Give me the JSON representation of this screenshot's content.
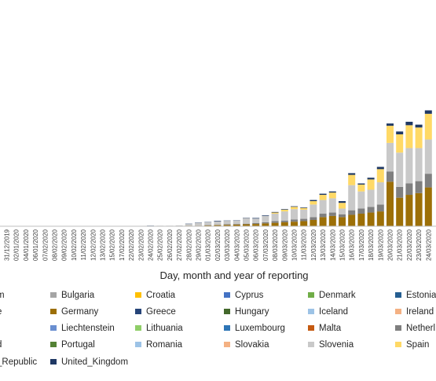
{
  "chart_data": {
    "type": "bar",
    "stacked": true,
    "xlabel": "Day, month and year of reporting",
    "ylabel": "",
    "title": "",
    "grid": false,
    "legend_position": "bottom",
    "categories": [
      "31/12/2019",
      "02/01/2020",
      "04/01/2020",
      "06/01/2020",
      "07/02/2020",
      "08/02/2020",
      "09/02/2020",
      "10/02/2020",
      "11/02/2020",
      "12/02/2020",
      "13/02/2020",
      "15/02/2020",
      "17/02/2020",
      "22/02/2020",
      "23/02/2020",
      "24/02/2020",
      "25/02/2020",
      "26/02/2020",
      "27/02/2020",
      "28/02/2020",
      "29/02/2020",
      "01/03/2020",
      "02/03/2020",
      "03/03/2020",
      "04/03/2020",
      "05/03/2020",
      "06/03/2020",
      "07/03/2020",
      "08/03/2020",
      "09/03/2020",
      "10/03/2020",
      "11/03/2020",
      "12/03/2020",
      "13/03/2020",
      "14/03/2020",
      "15/03/2020",
      "16/03/2020",
      "17/03/2020",
      "18/03/2020",
      "19/03/2020",
      "20/03/2020",
      "21/03/2020",
      "22/03/2020",
      "23/03/2020",
      "24/03/2020"
    ],
    "ylim": [
      0,
      30
    ],
    "series": [
      {
        "name": "Bulgaria",
        "color": "#a5a5a5",
        "values": [
          0,
          0,
          0,
          0,
          0,
          0,
          0,
          0,
          0,
          0,
          0,
          0,
          0,
          0,
          0,
          0,
          0,
          0,
          0,
          0,
          0,
          0,
          0,
          0,
          0,
          0,
          0,
          0,
          0,
          0,
          0,
          0,
          0,
          0,
          0,
          0,
          0,
          0,
          0,
          0,
          0,
          0,
          0,
          0,
          0
        ]
      },
      {
        "name": "Germany",
        "color": "#9c6f07",
        "values": [
          0,
          0,
          0,
          0,
          0,
          0,
          0,
          0,
          0,
          0,
          0,
          0,
          0,
          0,
          0,
          0,
          0,
          0,
          0.05,
          0.1,
          0.1,
          0.15,
          0.2,
          0.25,
          0.3,
          0.35,
          0.4,
          0.5,
          0.6,
          0.7,
          0.8,
          0.9,
          1.1,
          1.6,
          1.8,
          1.6,
          2.0,
          2.2,
          2.4,
          2.6,
          7.8,
          5.0,
          5.5,
          5.8,
          6.8
        ]
      },
      {
        "name": "Netherlands",
        "color": "#7f7f7f",
        "values": [
          0,
          0,
          0,
          0,
          0,
          0,
          0,
          0,
          0,
          0,
          0,
          0,
          0,
          0,
          0,
          0,
          0,
          0,
          0,
          0,
          0,
          0.05,
          0.05,
          0.1,
          0.1,
          0.1,
          0.15,
          0.2,
          0.3,
          0.3,
          0.4,
          0.4,
          0.5,
          0.6,
          0.6,
          0.5,
          0.8,
          0.9,
          1.0,
          1.2,
          1.8,
          1.9,
          2.0,
          2.1,
          2.4
        ]
      },
      {
        "name": "Slovenia",
        "color": "#c9c9c9",
        "values": [
          0,
          0,
          0,
          0,
          0,
          0,
          0,
          0,
          0,
          0,
          0,
          0,
          0,
          0,
          0,
          0.05,
          0.1,
          0.1,
          0.1,
          0.3,
          0.5,
          0.5,
          0.6,
          0.6,
          0.6,
          1.0,
          0.8,
          1.1,
          1.3,
          1.6,
          1.8,
          1.6,
          2.2,
          2.4,
          2.5,
          1.0,
          4.4,
          3.0,
          3.0,
          3.9,
          5.0,
          6.0,
          6.2,
          5.8,
          6.0
        ]
      },
      {
        "name": "Spain",
        "color": "#ffd966",
        "values": [
          0,
          0,
          0,
          0,
          0,
          0,
          0,
          0,
          0,
          0,
          0,
          0,
          0,
          0,
          0,
          0,
          0,
          0,
          0,
          0,
          0,
          0,
          0,
          0,
          0,
          0,
          0,
          0,
          0.2,
          0.3,
          0.4,
          0.3,
          0.6,
          0.9,
          1.0,
          1.0,
          1.8,
          1.2,
          1.8,
          2.3,
          3.0,
          3.2,
          4.0,
          3.6,
          4.5
        ]
      },
      {
        "name": "United_Kingdom",
        "color": "#1f3864",
        "values": [
          0,
          0,
          0,
          0,
          0,
          0,
          0,
          0,
          0,
          0,
          0,
          0,
          0,
          0,
          0,
          0.05,
          0,
          0,
          0,
          0.05,
          0.05,
          0.05,
          0.1,
          0.05,
          0.05,
          0.05,
          0.1,
          0.1,
          0.1,
          0.1,
          0.1,
          0.1,
          0.2,
          0.2,
          0.2,
          0.3,
          0.3,
          0.2,
          0.3,
          0.4,
          0.4,
          0.5,
          0.6,
          0.5,
          0.6
        ]
      }
    ],
    "legend": [
      [
        "m",
        "Bulgaria",
        "Croatia",
        "Cyprus",
        "Denmark",
        "Estonia"
      ],
      [
        "e",
        "Germany",
        "Greece",
        "Hungary",
        "Iceland",
        "Ireland"
      ],
      [
        "",
        "Liechtenstein",
        "Lithuania",
        "Luxembourg",
        "Malta",
        "Netherl"
      ],
      [
        "d",
        "Portugal",
        "Romania",
        "Slovakia",
        "Slovenia",
        "Spain"
      ],
      [
        "_Republic",
        "United_Kingdom",
        "",
        "",
        "",
        ""
      ]
    ],
    "legend_colors": [
      [
        "#7f7f7f",
        "#a5a5a5",
        "#ffc000",
        "#4472c4",
        "#70ad47",
        "#255e91"
      ],
      [
        "#7f7f7f",
        "#9c6f07",
        "#264478",
        "#43682b",
        "#9dc3e6",
        "#f4b183"
      ],
      [
        "",
        "#698ed0",
        "#8fce67",
        "#2e75b6",
        "#c55a11",
        "#7f7f7f"
      ],
      [
        "#7f7f7f",
        "#548235",
        "#9dc3e6",
        "#f4b183",
        "#c9c9c9",
        "#ffd966"
      ],
      [
        "#7f7f7f",
        "#1f3864",
        "",
        "",
        "",
        ""
      ]
    ]
  }
}
